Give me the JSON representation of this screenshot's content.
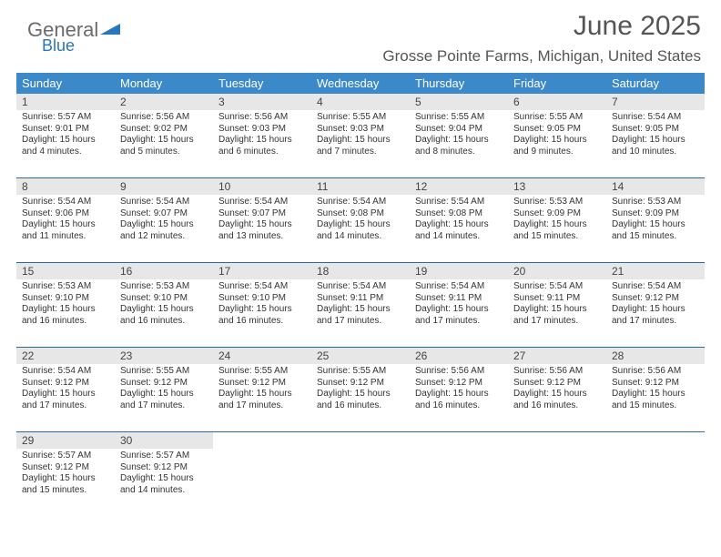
{
  "brand": {
    "line1": "General",
    "line2": "Blue"
  },
  "title": "June 2025",
  "location": "Grosse Pointe Farms, Michigan, United States",
  "colors": {
    "header_bg": "#3b89c9",
    "header_text": "#ffffff",
    "row_sep": "#2a6aa0",
    "daynum_bg": "#e7e7e7",
    "text": "#333333",
    "brand_blue": "#2a76bb"
  },
  "columns": [
    "Sunday",
    "Monday",
    "Tuesday",
    "Wednesday",
    "Thursday",
    "Friday",
    "Saturday"
  ],
  "weeks": [
    [
      {
        "n": "1",
        "sr": "5:57 AM",
        "ss": "9:01 PM",
        "dl": "15 hours and 4 minutes."
      },
      {
        "n": "2",
        "sr": "5:56 AM",
        "ss": "9:02 PM",
        "dl": "15 hours and 5 minutes."
      },
      {
        "n": "3",
        "sr": "5:56 AM",
        "ss": "9:03 PM",
        "dl": "15 hours and 6 minutes."
      },
      {
        "n": "4",
        "sr": "5:55 AM",
        "ss": "9:03 PM",
        "dl": "15 hours and 7 minutes."
      },
      {
        "n": "5",
        "sr": "5:55 AM",
        "ss": "9:04 PM",
        "dl": "15 hours and 8 minutes."
      },
      {
        "n": "6",
        "sr": "5:55 AM",
        "ss": "9:05 PM",
        "dl": "15 hours and 9 minutes."
      },
      {
        "n": "7",
        "sr": "5:54 AM",
        "ss": "9:05 PM",
        "dl": "15 hours and 10 minutes."
      }
    ],
    [
      {
        "n": "8",
        "sr": "5:54 AM",
        "ss": "9:06 PM",
        "dl": "15 hours and 11 minutes."
      },
      {
        "n": "9",
        "sr": "5:54 AM",
        "ss": "9:07 PM",
        "dl": "15 hours and 12 minutes."
      },
      {
        "n": "10",
        "sr": "5:54 AM",
        "ss": "9:07 PM",
        "dl": "15 hours and 13 minutes."
      },
      {
        "n": "11",
        "sr": "5:54 AM",
        "ss": "9:08 PM",
        "dl": "15 hours and 14 minutes."
      },
      {
        "n": "12",
        "sr": "5:54 AM",
        "ss": "9:08 PM",
        "dl": "15 hours and 14 minutes."
      },
      {
        "n": "13",
        "sr": "5:53 AM",
        "ss": "9:09 PM",
        "dl": "15 hours and 15 minutes."
      },
      {
        "n": "14",
        "sr": "5:53 AM",
        "ss": "9:09 PM",
        "dl": "15 hours and 15 minutes."
      }
    ],
    [
      {
        "n": "15",
        "sr": "5:53 AM",
        "ss": "9:10 PM",
        "dl": "15 hours and 16 minutes."
      },
      {
        "n": "16",
        "sr": "5:53 AM",
        "ss": "9:10 PM",
        "dl": "15 hours and 16 minutes."
      },
      {
        "n": "17",
        "sr": "5:54 AM",
        "ss": "9:10 PM",
        "dl": "15 hours and 16 minutes."
      },
      {
        "n": "18",
        "sr": "5:54 AM",
        "ss": "9:11 PM",
        "dl": "15 hours and 17 minutes."
      },
      {
        "n": "19",
        "sr": "5:54 AM",
        "ss": "9:11 PM",
        "dl": "15 hours and 17 minutes."
      },
      {
        "n": "20",
        "sr": "5:54 AM",
        "ss": "9:11 PM",
        "dl": "15 hours and 17 minutes."
      },
      {
        "n": "21",
        "sr": "5:54 AM",
        "ss": "9:12 PM",
        "dl": "15 hours and 17 minutes."
      }
    ],
    [
      {
        "n": "22",
        "sr": "5:54 AM",
        "ss": "9:12 PM",
        "dl": "15 hours and 17 minutes."
      },
      {
        "n": "23",
        "sr": "5:55 AM",
        "ss": "9:12 PM",
        "dl": "15 hours and 17 minutes."
      },
      {
        "n": "24",
        "sr": "5:55 AM",
        "ss": "9:12 PM",
        "dl": "15 hours and 17 minutes."
      },
      {
        "n": "25",
        "sr": "5:55 AM",
        "ss": "9:12 PM",
        "dl": "15 hours and 16 minutes."
      },
      {
        "n": "26",
        "sr": "5:56 AM",
        "ss": "9:12 PM",
        "dl": "15 hours and 16 minutes."
      },
      {
        "n": "27",
        "sr": "5:56 AM",
        "ss": "9:12 PM",
        "dl": "15 hours and 16 minutes."
      },
      {
        "n": "28",
        "sr": "5:56 AM",
        "ss": "9:12 PM",
        "dl": "15 hours and 15 minutes."
      }
    ],
    [
      {
        "n": "29",
        "sr": "5:57 AM",
        "ss": "9:12 PM",
        "dl": "15 hours and 15 minutes."
      },
      {
        "n": "30",
        "sr": "5:57 AM",
        "ss": "9:12 PM",
        "dl": "15 hours and 14 minutes."
      },
      null,
      null,
      null,
      null,
      null
    ]
  ],
  "labels": {
    "sunrise": "Sunrise: ",
    "sunset": "Sunset: ",
    "daylight": "Daylight: "
  }
}
